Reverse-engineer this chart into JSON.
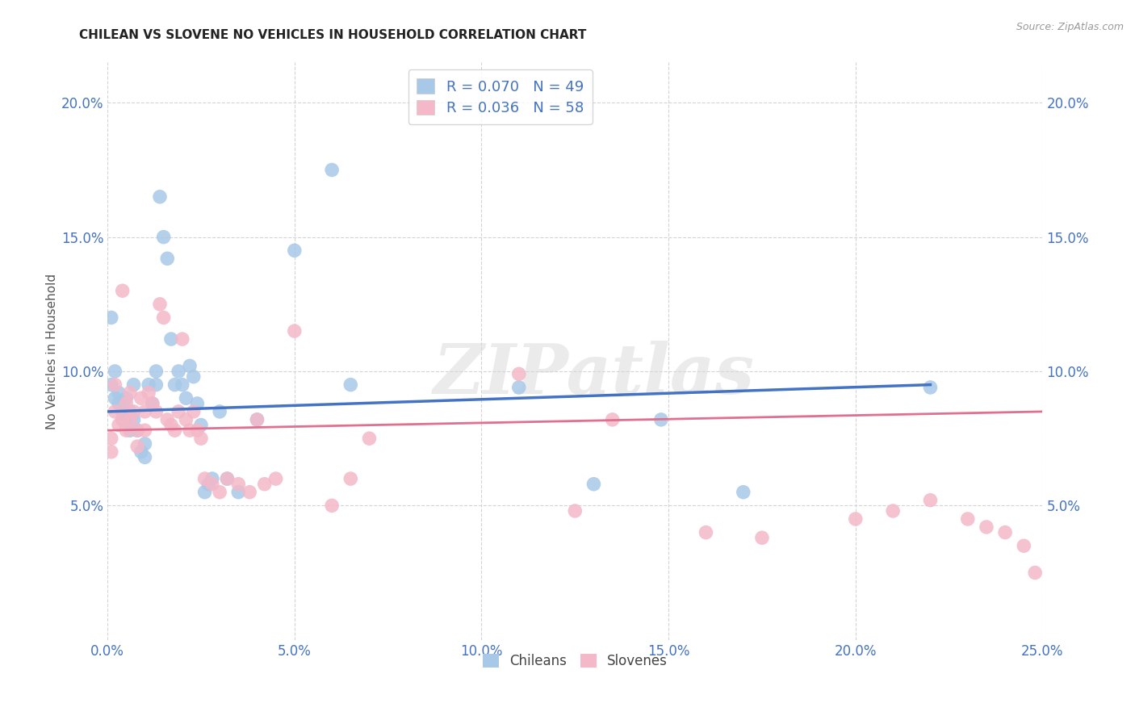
{
  "title": "CHILEAN VS SLOVENE NO VEHICLES IN HOUSEHOLD CORRELATION CHART",
  "source": "Source: ZipAtlas.com",
  "ylabel": "No Vehicles in Household",
  "xlim": [
    0.0,
    0.25
  ],
  "ylim": [
    0.0,
    0.215
  ],
  "xticks": [
    0.0,
    0.05,
    0.1,
    0.15,
    0.2,
    0.25
  ],
  "yticks": [
    0.05,
    0.1,
    0.15,
    0.2
  ],
  "xticklabels": [
    "0.0%",
    "5.0%",
    "10.0%",
    "15.0%",
    "20.0%",
    "25.0%"
  ],
  "yticklabels": [
    "5.0%",
    "10.0%",
    "15.0%",
    "20.0%"
  ],
  "chilean_color": "#a8c8e8",
  "slovene_color": "#f4b8c8",
  "chilean_line_color": "#4472c4",
  "slovene_line_color": "#e07090",
  "legend_r_chilean": "R = 0.070",
  "legend_n_chilean": "N = 49",
  "legend_r_slovene": "R = 0.036",
  "legend_n_slovene": "N = 58",
  "chilean_x": [
    0.001,
    0.001,
    0.002,
    0.002,
    0.003,
    0.003,
    0.004,
    0.004,
    0.005,
    0.005,
    0.006,
    0.006,
    0.007,
    0.007,
    0.008,
    0.009,
    0.01,
    0.01,
    0.011,
    0.012,
    0.013,
    0.013,
    0.014,
    0.015,
    0.016,
    0.017,
    0.018,
    0.019,
    0.02,
    0.021,
    0.022,
    0.023,
    0.024,
    0.025,
    0.026,
    0.027,
    0.028,
    0.03,
    0.032,
    0.035,
    0.04,
    0.05,
    0.06,
    0.065,
    0.11,
    0.13,
    0.148,
    0.17,
    0.22
  ],
  "chilean_y": [
    0.12,
    0.095,
    0.1,
    0.09,
    0.092,
    0.088,
    0.085,
    0.082,
    0.09,
    0.08,
    0.085,
    0.078,
    0.095,
    0.082,
    0.078,
    0.07,
    0.073,
    0.068,
    0.095,
    0.088,
    0.1,
    0.095,
    0.165,
    0.15,
    0.142,
    0.112,
    0.095,
    0.1,
    0.095,
    0.09,
    0.102,
    0.098,
    0.088,
    0.08,
    0.055,
    0.058,
    0.06,
    0.085,
    0.06,
    0.055,
    0.082,
    0.145,
    0.175,
    0.095,
    0.094,
    0.058,
    0.082,
    0.055,
    0.094
  ],
  "slovene_x": [
    0.001,
    0.001,
    0.002,
    0.002,
    0.003,
    0.004,
    0.004,
    0.005,
    0.005,
    0.006,
    0.006,
    0.007,
    0.008,
    0.008,
    0.009,
    0.01,
    0.01,
    0.011,
    0.012,
    0.013,
    0.014,
    0.015,
    0.016,
    0.017,
    0.018,
    0.019,
    0.02,
    0.021,
    0.022,
    0.023,
    0.024,
    0.025,
    0.026,
    0.028,
    0.03,
    0.032,
    0.035,
    0.038,
    0.04,
    0.042,
    0.045,
    0.05,
    0.06,
    0.065,
    0.07,
    0.11,
    0.125,
    0.135,
    0.16,
    0.175,
    0.2,
    0.21,
    0.22,
    0.23,
    0.235,
    0.24,
    0.245,
    0.248
  ],
  "slovene_y": [
    0.075,
    0.07,
    0.095,
    0.085,
    0.08,
    0.13,
    0.082,
    0.088,
    0.078,
    0.092,
    0.082,
    0.085,
    0.078,
    0.072,
    0.09,
    0.085,
    0.078,
    0.092,
    0.088,
    0.085,
    0.125,
    0.12,
    0.082,
    0.08,
    0.078,
    0.085,
    0.112,
    0.082,
    0.078,
    0.085,
    0.078,
    0.075,
    0.06,
    0.058,
    0.055,
    0.06,
    0.058,
    0.055,
    0.082,
    0.058,
    0.06,
    0.115,
    0.05,
    0.06,
    0.075,
    0.099,
    0.048,
    0.082,
    0.04,
    0.038,
    0.045,
    0.048,
    0.052,
    0.045,
    0.042,
    0.04,
    0.035,
    0.025
  ],
  "background_color": "#ffffff",
  "grid_color": "#d0d0d0",
  "watermark_text": "ZIPatlas",
  "watermark_color": "#d8d8d8"
}
